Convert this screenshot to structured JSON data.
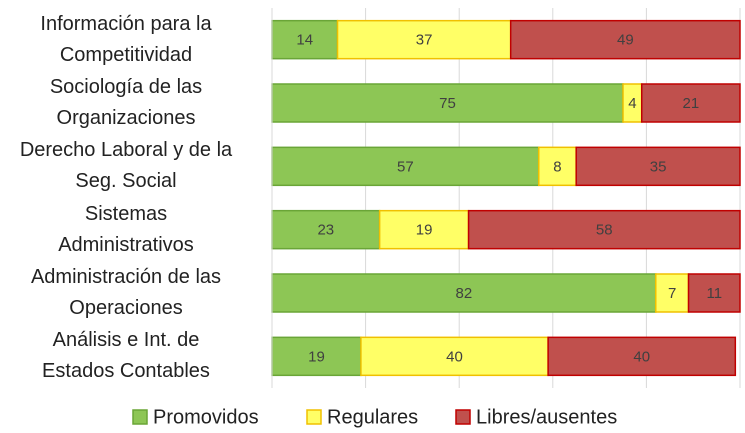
{
  "chart_data": {
    "type": "stacked_barh",
    "categories": [
      "Información para la\nCompetitividad",
      "Sociología de las\nOrganizaciones",
      "Derecho Laboral y de la\nSeg. Social",
      "Sistemas\nAdministrativos",
      "Administración de las\nOperaciones",
      "Análisis e Int. de\nEstados Contables"
    ],
    "series": [
      {
        "name": "Promovidos",
        "color": "#8dc655",
        "border": "#6aa537",
        "values": [
          14,
          75,
          57,
          23,
          82,
          19
        ]
      },
      {
        "name": "Regulares",
        "color": "#ffff66",
        "border": "#f0c000",
        "values": [
          37,
          4,
          8,
          19,
          7,
          40
        ]
      },
      {
        "name": "Libres/ausentes",
        "color": "#c0504d",
        "border": "#c00000",
        "values": [
          49,
          21,
          35,
          58,
          11,
          40
        ]
      }
    ],
    "xlim": [
      0,
      100
    ],
    "xticks": [
      0,
      20,
      40,
      60,
      80,
      100
    ],
    "grid": true,
    "legend": "bottom"
  }
}
